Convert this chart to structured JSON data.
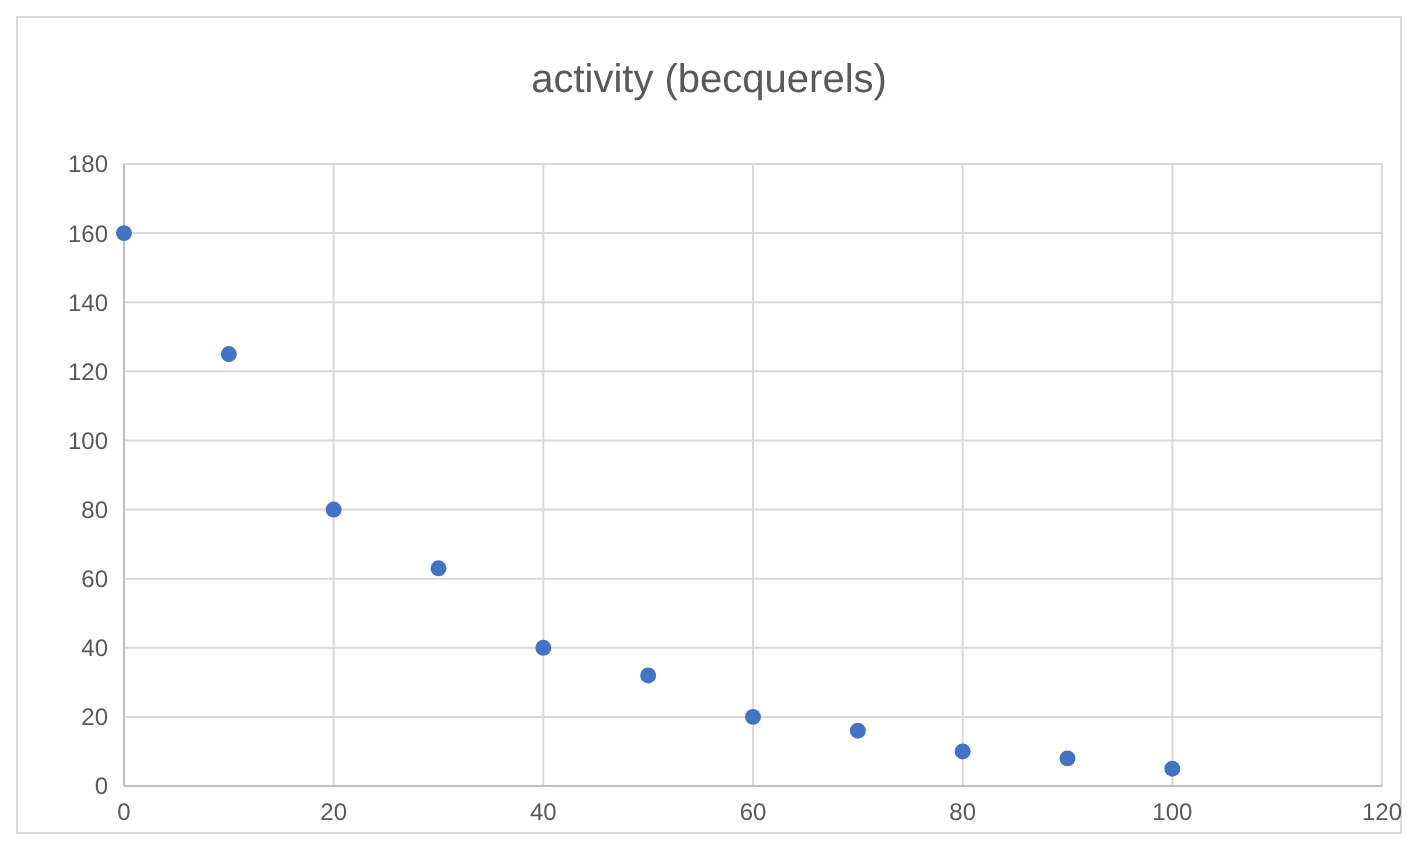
{
  "chart_data": {
    "type": "scatter",
    "title": "activity (becquerels)",
    "x": [
      0,
      10,
      20,
      30,
      40,
      50,
      60,
      70,
      80,
      90,
      100
    ],
    "values": [
      160,
      125,
      80,
      63,
      40,
      32,
      20,
      16,
      10,
      8,
      5
    ],
    "color": "#4472c4",
    "marker": "circle",
    "xlim": [
      0,
      120
    ],
    "xticks": [
      0,
      20,
      40,
      60,
      80,
      100,
      120
    ],
    "ylim": [
      0,
      180
    ],
    "yticks": [
      0,
      20,
      40,
      60,
      80,
      100,
      120,
      140,
      160,
      180
    ],
    "grid": true
  }
}
